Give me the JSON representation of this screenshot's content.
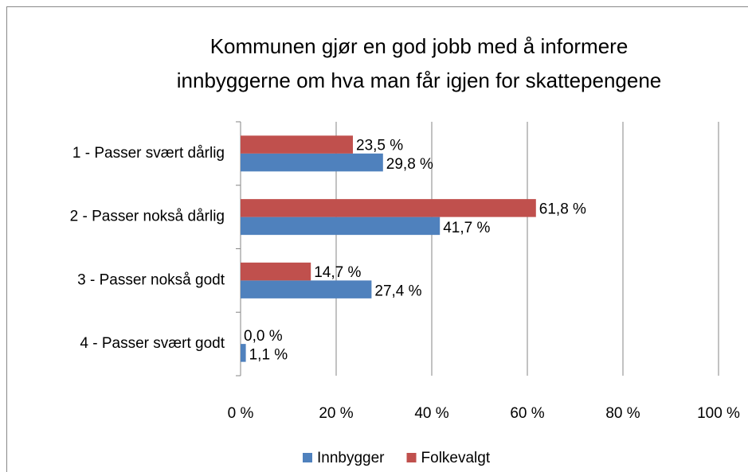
{
  "chart_data": {
    "type": "hbar",
    "title": [
      "Kommunen gjør en god jobb med å informere",
      "innbyggerne om hva man får igjen for skattepengene"
    ],
    "categories": [
      "1 - Passer svært dårlig",
      "2 - Passer nokså dårlig",
      "3 - Passer nokså godt",
      "4 - Passer svært godt"
    ],
    "series": [
      {
        "name": "Innbygger",
        "color": "#4f81bd",
        "values": [
          29.8,
          41.7,
          27.4,
          1.1
        ],
        "value_labels": [
          "29,8 %",
          "41,7 %",
          "27,4 %",
          "1,1 %"
        ]
      },
      {
        "name": "Folkevalgt",
        "color": "#c0504d",
        "values": [
          23.5,
          61.8,
          14.7,
          0.0
        ],
        "value_labels": [
          "23,5 %",
          "61,8 %",
          "14,7 %",
          "0,0 %"
        ]
      }
    ],
    "xlim": [
      0,
      100
    ],
    "xticks": [
      {
        "value": 0,
        "label": "0 %"
      },
      {
        "value": 20,
        "label": "20 %"
      },
      {
        "value": 40,
        "label": "40 %"
      },
      {
        "value": 60,
        "label": "60 %"
      },
      {
        "value": 80,
        "label": "80 %"
      },
      {
        "value": 100,
        "label": "100 %"
      }
    ],
    "grid": true,
    "legend": "bottom"
  }
}
